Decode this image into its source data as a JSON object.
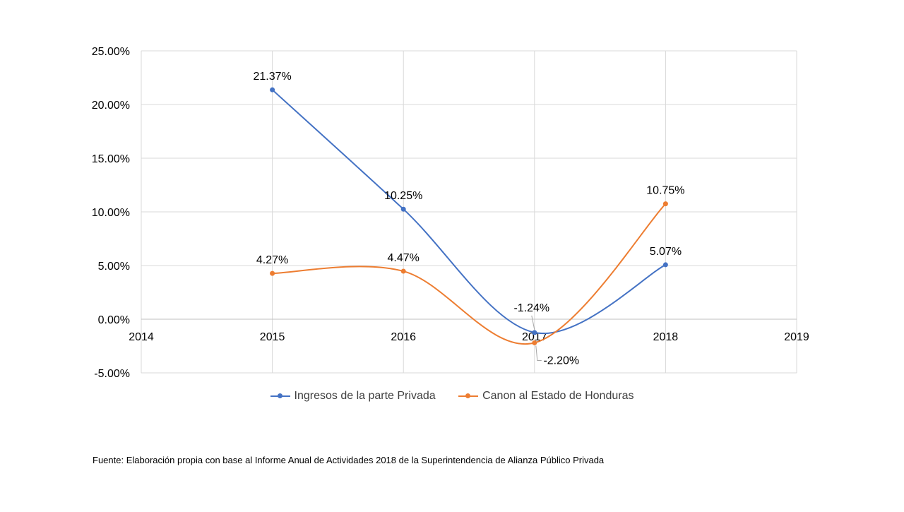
{
  "chart_data": {
    "type": "line",
    "title": "",
    "xlabel": "",
    "ylabel": "",
    "xlim": [
      2014,
      2019
    ],
    "ylim": [
      -5,
      25
    ],
    "x_ticks": [
      "2014",
      "2015",
      "2016",
      "2017",
      "2018",
      "2019"
    ],
    "y_ticks": [
      "-5.00%",
      "0.00%",
      "5.00%",
      "10.00%",
      "15.00%",
      "20.00%",
      "25.00%"
    ],
    "grid": true,
    "legend_position": "bottom",
    "series": [
      {
        "name": "Ingresos de la parte Privada",
        "color": "#4472C4",
        "x": [
          2015,
          2016,
          2017,
          2018
        ],
        "values": [
          21.37,
          10.25,
          -1.24,
          5.07
        ],
        "labels": [
          "21.37%",
          "10.25%",
          "-1.24%",
          "5.07%"
        ]
      },
      {
        "name": "Canon al Estado de Honduras",
        "color": "#ED7D31",
        "x": [
          2015,
          2016,
          2017,
          2018
        ],
        "values": [
          4.27,
          4.47,
          -2.2,
          10.75
        ],
        "labels": [
          "4.27%",
          "4.47%",
          "-2.20%",
          "10.75%"
        ]
      }
    ]
  },
  "source_note": "Fuente: Elaboración propia con base al Informe Anual de Actividades 2018 de la Superintendencia de Alianza Público Privada"
}
